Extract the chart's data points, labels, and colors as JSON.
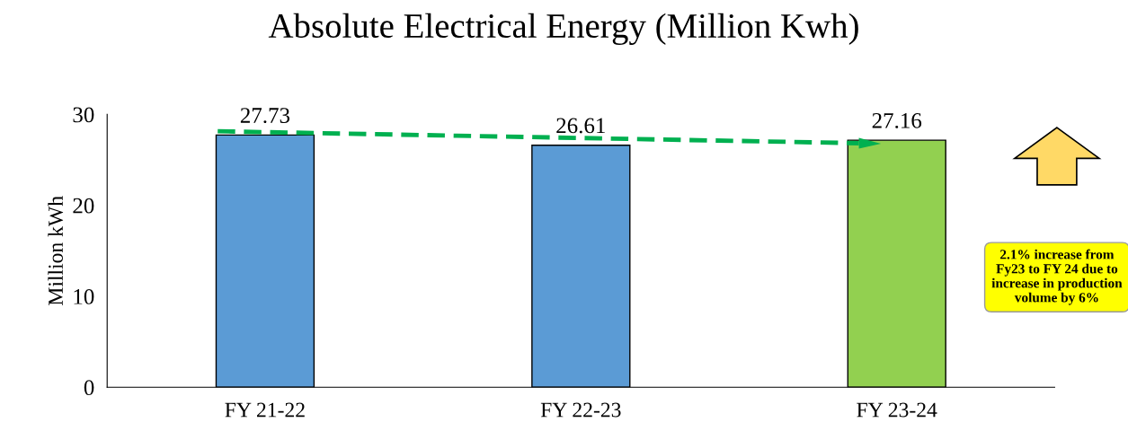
{
  "chart_data": {
    "type": "bar",
    "title": "Absolute Electrical Energy (Million Kwh)",
    "ylabel": "Million kWh",
    "categories": [
      "FY 21-22",
      "FY 22-23",
      "FY 23-24"
    ],
    "values": [
      27.73,
      26.61,
      27.16
    ],
    "colors": [
      "#5b9bd5",
      "#5b9bd5",
      "#92d050"
    ],
    "data_labels": true,
    "ylim": [
      0,
      30
    ],
    "yticks": [
      0,
      10,
      20,
      30
    ],
    "grid": false,
    "legend": false,
    "annotations": [
      "2.1% increase from Fy23 to FY 24 due to increase in production volume by 6%"
    ]
  }
}
